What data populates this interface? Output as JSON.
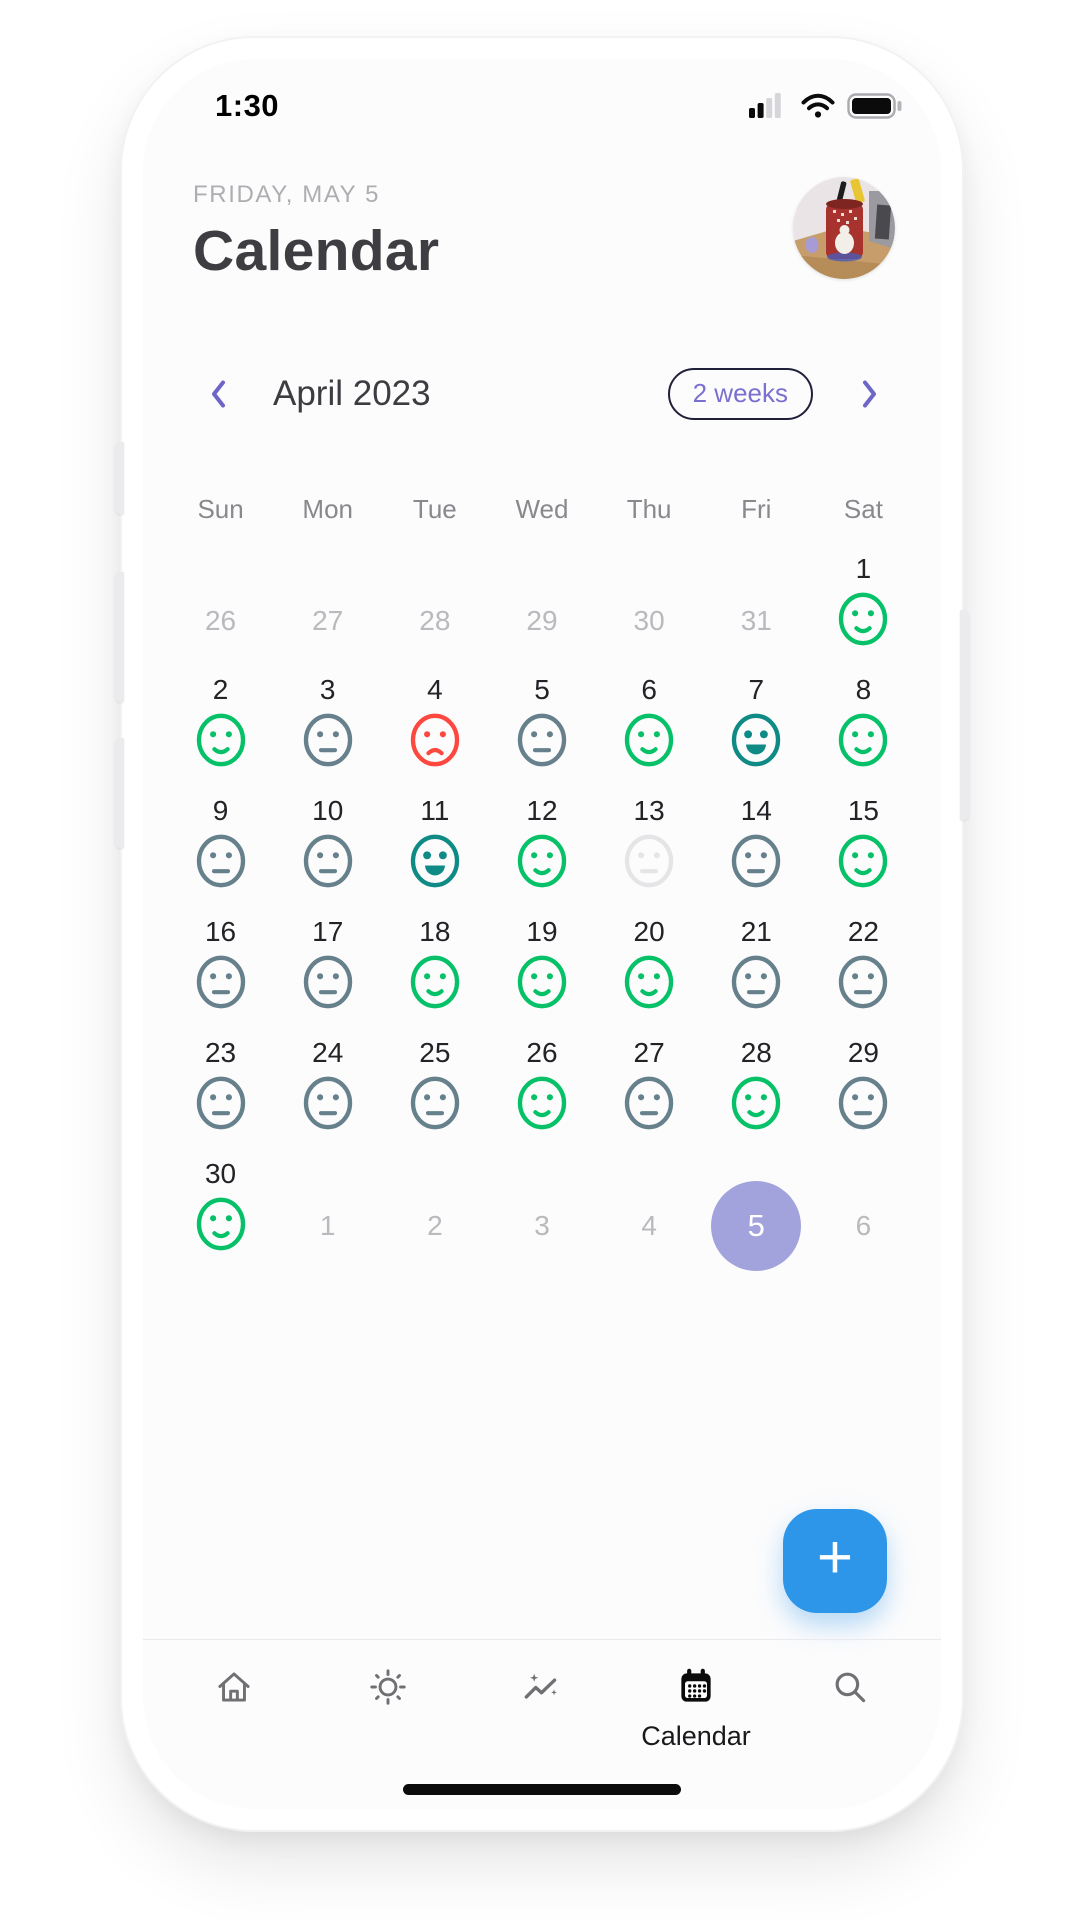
{
  "status_bar": {
    "time": "1:30",
    "icons": [
      "cellular-signal-icon",
      "wifi-icon",
      "battery-icon"
    ],
    "cellular_bars_filled": 2,
    "cellular_bars_total": 4
  },
  "header": {
    "date_label": "FRIDAY, MAY 5",
    "title": "Calendar",
    "avatar": "profile-photo"
  },
  "month_nav": {
    "prev_icon": "chevron-left-icon",
    "month_label": "April 2023",
    "range_label": "2 weeks",
    "next_icon": "chevron-right-icon"
  },
  "calendar": {
    "weekdays": [
      "Sun",
      "Mon",
      "Tue",
      "Wed",
      "Thu",
      "Fri",
      "Sat"
    ],
    "cells": [
      {
        "day": 26,
        "month": "prev"
      },
      {
        "day": 27,
        "month": "prev"
      },
      {
        "day": 28,
        "month": "prev"
      },
      {
        "day": 29,
        "month": "prev"
      },
      {
        "day": 30,
        "month": "prev"
      },
      {
        "day": 31,
        "month": "prev"
      },
      {
        "day": 1,
        "month": "current",
        "mood": "good"
      },
      {
        "day": 2,
        "month": "current",
        "mood": "good"
      },
      {
        "day": 3,
        "month": "current",
        "mood": "okay"
      },
      {
        "day": 4,
        "month": "current",
        "mood": "bad"
      },
      {
        "day": 5,
        "month": "current",
        "mood": "okay"
      },
      {
        "day": 6,
        "month": "current",
        "mood": "good"
      },
      {
        "day": 7,
        "month": "current",
        "mood": "great"
      },
      {
        "day": 8,
        "month": "current",
        "mood": "good"
      },
      {
        "day": 9,
        "month": "current",
        "mood": "okay"
      },
      {
        "day": 10,
        "month": "current",
        "mood": "okay"
      },
      {
        "day": 11,
        "month": "current",
        "mood": "great"
      },
      {
        "day": 12,
        "month": "current",
        "mood": "good"
      },
      {
        "day": 13,
        "month": "current",
        "mood": "empty"
      },
      {
        "day": 14,
        "month": "current",
        "mood": "okay"
      },
      {
        "day": 15,
        "month": "current",
        "mood": "good"
      },
      {
        "day": 16,
        "month": "current",
        "mood": "okay"
      },
      {
        "day": 17,
        "month": "current",
        "mood": "okay"
      },
      {
        "day": 18,
        "month": "current",
        "mood": "good"
      },
      {
        "day": 19,
        "month": "current",
        "mood": "good"
      },
      {
        "day": 20,
        "month": "current",
        "mood": "good"
      },
      {
        "day": 21,
        "month": "current",
        "mood": "okay"
      },
      {
        "day": 22,
        "month": "current",
        "mood": "okay"
      },
      {
        "day": 23,
        "month": "current",
        "mood": "okay"
      },
      {
        "day": 24,
        "month": "current",
        "mood": "okay"
      },
      {
        "day": 25,
        "month": "current",
        "mood": "okay"
      },
      {
        "day": 26,
        "month": "current",
        "mood": "good"
      },
      {
        "day": 27,
        "month": "current",
        "mood": "okay"
      },
      {
        "day": 28,
        "month": "current",
        "mood": "good"
      },
      {
        "day": 29,
        "month": "current",
        "mood": "okay"
      },
      {
        "day": 30,
        "month": "current",
        "mood": "good"
      },
      {
        "day": 1,
        "month": "next"
      },
      {
        "day": 2,
        "month": "next"
      },
      {
        "day": 3,
        "month": "next"
      },
      {
        "day": 4,
        "month": "next"
      },
      {
        "day": 5,
        "month": "next",
        "selected": true
      },
      {
        "day": 6,
        "month": "next"
      }
    ]
  },
  "moods": {
    "great": {
      "color": "#0F8A85",
      "mouth": "grin",
      "label": "great"
    },
    "good": {
      "color": "#06C167",
      "mouth": "smile",
      "label": "good"
    },
    "okay": {
      "color": "#66808C",
      "mouth": "flat",
      "label": "okay"
    },
    "bad": {
      "color": "#FD4840",
      "mouth": "frown",
      "label": "bad"
    },
    "empty": {
      "color": "#E5E5E7",
      "mouth": "flat",
      "label": "no entry"
    }
  },
  "fab": {
    "glyph": "+",
    "icon": "plus-icon"
  },
  "bottom_nav": {
    "items": [
      {
        "id": "home",
        "icon": "home-icon",
        "active": false
      },
      {
        "id": "today",
        "icon": "sun-icon",
        "active": false
      },
      {
        "id": "trends",
        "icon": "trend-sparkline-icon",
        "active": false
      },
      {
        "id": "calendar",
        "icon": "calendar-icon",
        "label": "Calendar",
        "active": true
      },
      {
        "id": "search",
        "icon": "search-icon",
        "active": false
      }
    ]
  },
  "colors": {
    "accent_purple": "#6D66C8",
    "pill_text_purple": "#7A70D0",
    "selected_day_bg": "#A2A3DC",
    "fab_blue": "#2E96E8",
    "active_nav": "#0B0B0C",
    "inactive_nav": "#6F6F74"
  }
}
